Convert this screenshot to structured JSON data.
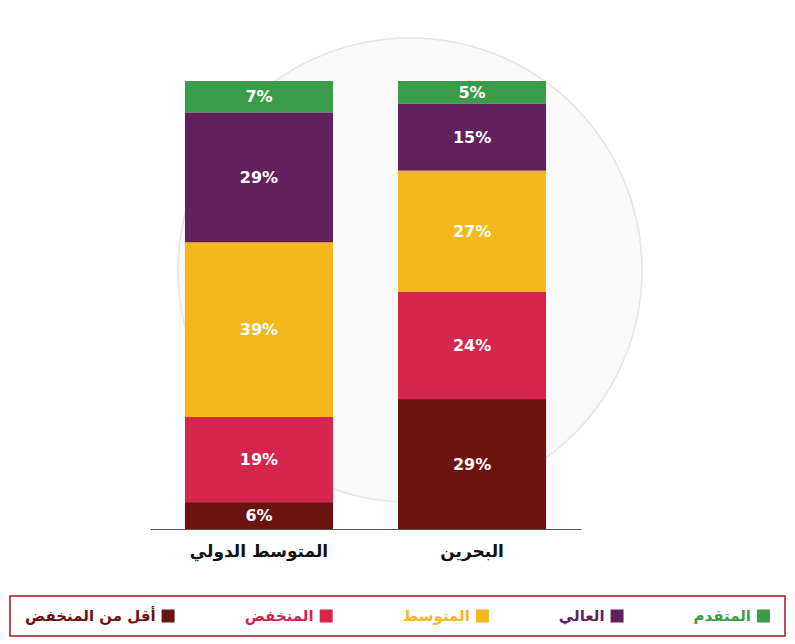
{
  "chart_data": {
    "type": "bar",
    "stacked": true,
    "data_labels": true,
    "tick_labels": "x",
    "legend": "bottom",
    "categories": [
      "المتوسط الدولي",
      "البحرين"
    ],
    "ylim": [
      0,
      100
    ],
    "series": [
      {
        "name": "أقل من المنخفض",
        "color": "#6b130f",
        "values": [
          6,
          29
        ],
        "value_labels": [
          "6%",
          "29%"
        ]
      },
      {
        "name": "المنخفض",
        "color": "#d6254f",
        "values": [
          19,
          24
        ],
        "value_labels": [
          "19%",
          "24%"
        ]
      },
      {
        "name": "المتوسط",
        "color": "#f2b81c",
        "values": [
          39,
          27
        ],
        "value_labels": [
          "39%",
          "27%"
        ]
      },
      {
        "name": "العالي",
        "color": "#62215e",
        "values": [
          29,
          15
        ],
        "value_labels": [
          "29%",
          "15%"
        ]
      },
      {
        "name": "المتقدم",
        "color": "#3a9b48",
        "values": [
          7,
          5
        ],
        "value_labels": [
          "7%",
          "5%"
        ]
      }
    ]
  }
}
